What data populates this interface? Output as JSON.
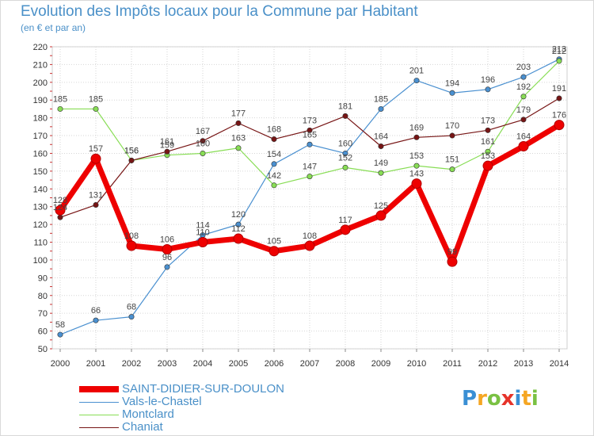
{
  "chart_data": {
    "type": "line",
    "title": "Evolution des Impôts locaux pour la Commune par Habitant",
    "subtitle": "(en € et par an)",
    "x": [
      "2000",
      "2001",
      "2002",
      "2003",
      "2004",
      "2005",
      "2006",
      "2007",
      "2008",
      "2009",
      "2010",
      "2011",
      "2012",
      "2013",
      "2014"
    ],
    "ylim": [
      50,
      220
    ],
    "yticks": [
      50,
      60,
      70,
      80,
      90,
      100,
      110,
      120,
      130,
      140,
      150,
      160,
      170,
      180,
      190,
      200,
      210,
      220
    ],
    "grid": true,
    "legend_position": "bottom-left",
    "series": [
      {
        "name": "SAINT-DIDIER-SUR-DOULON",
        "color": "#ee0000",
        "values": [
          128,
          157,
          108,
          106,
          110,
          112,
          105,
          108,
          117,
          125,
          143,
          99,
          153,
          164,
          176
        ]
      },
      {
        "name": "Vals-le-Chastel",
        "color": "#4a90d0",
        "values": [
          58,
          66,
          68,
          96,
          114,
          120,
          154,
          165,
          160,
          185,
          201,
          194,
          196,
          203,
          213
        ]
      },
      {
        "name": "Montclard",
        "color": "#88dd55",
        "values": [
          185,
          185,
          156,
          159,
          160,
          163,
          142,
          147,
          152,
          149,
          153,
          151,
          161,
          192,
          212
        ]
      },
      {
        "name": "Chaniat",
        "color": "#771515",
        "values": [
          124,
          131,
          156,
          161,
          167,
          177,
          168,
          173,
          181,
          164,
          169,
          170,
          173,
          179,
          191
        ]
      }
    ]
  },
  "brand": {
    "letters": [
      "P",
      "r",
      "o",
      "x",
      "i",
      "t",
      "i"
    ],
    "colors": [
      "#3a8fd4",
      "#f5a623",
      "#7ac143",
      "#e63329",
      "#3a8fd4",
      "#f5a623",
      "#7ac143"
    ]
  }
}
